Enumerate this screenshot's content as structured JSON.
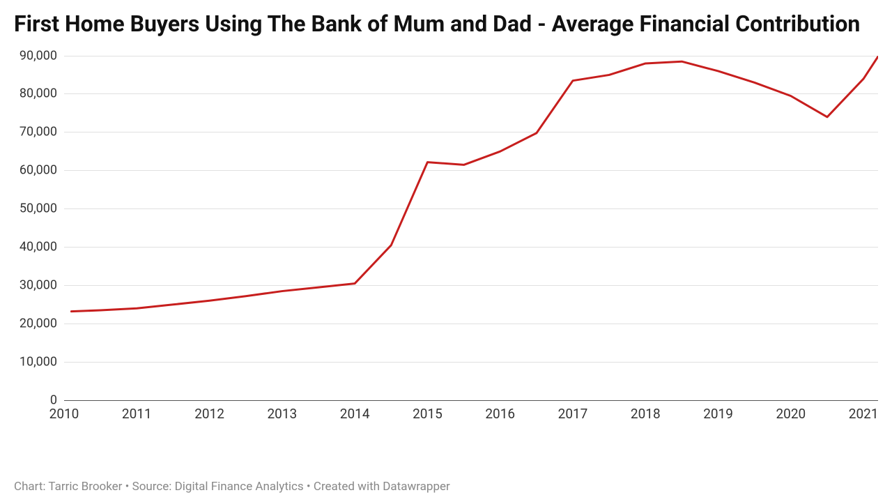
{
  "chart": {
    "type": "line",
    "title": "First Home Buyers Using The Bank of Mum and Dad - Average Financial Contribution",
    "title_fontsize": 32,
    "title_color": "#111111",
    "background_color": "#ffffff",
    "grid_color": "#e0e0e0",
    "baseline_color": "#555555",
    "text_color": "#333333",
    "line_color": "#c71e1d",
    "line_width": 3,
    "x_domain": [
      2010,
      2021.2
    ],
    "y_domain": [
      0,
      90000
    ],
    "y_ticks": [
      0,
      10000,
      20000,
      30000,
      40000,
      50000,
      60000,
      70000,
      80000,
      90000
    ],
    "y_tick_labels": [
      "0",
      "10,000",
      "20,000",
      "30,000",
      "40,000",
      "50,000",
      "60,000",
      "70,000",
      "80,000",
      "90,000"
    ],
    "x_ticks": [
      2010,
      2011,
      2012,
      2013,
      2014,
      2015,
      2016,
      2017,
      2018,
      2019,
      2020,
      2021
    ],
    "x_tick_labels": [
      "2010",
      "2011",
      "2012",
      "2013",
      "2014",
      "2015",
      "2016",
      "2017",
      "2018",
      "2019",
      "2020",
      "2021"
    ],
    "series": {
      "x": [
        2010.1,
        2010.5,
        2011,
        2011.5,
        2012,
        2012.5,
        2013,
        2013.5,
        2014,
        2014.5,
        2015,
        2015.5,
        2016,
        2016.5,
        2017,
        2017.5,
        2018,
        2018.5,
        2019,
        2019.5,
        2020,
        2020.5,
        2021,
        2021.2
      ],
      "y": [
        23200,
        23500,
        24000,
        25000,
        26000,
        27200,
        28500,
        29500,
        30500,
        40500,
        62200,
        61500,
        65000,
        69800,
        83500,
        85000,
        88000,
        88500,
        86000,
        83000,
        79500,
        74000,
        84000,
        89800
      ]
    },
    "footer": "Chart: Tarric Brooker • Source: Digital Finance Analytics • Created with Datawrapper",
    "footer_color": "#888888",
    "footer_fontsize": 17
  }
}
